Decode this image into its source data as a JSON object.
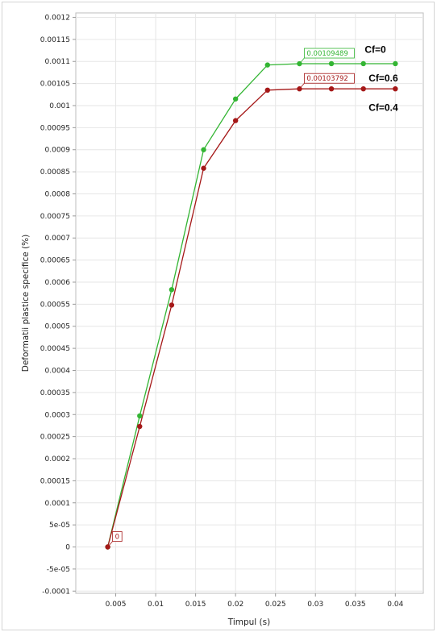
{
  "chart_data": {
    "type": "line",
    "xlabel": "Timpul (s)",
    "ylabel": "Deformatii plastice specifice (%)",
    "xlim": [
      0.0,
      0.0435
    ],
    "ylim": [
      -0.000105,
      0.00121
    ],
    "x_ticks": [
      {
        "value": 0.005,
        "label": "0.005"
      },
      {
        "value": 0.01,
        "label": "0.01"
      },
      {
        "value": 0.015,
        "label": "0.015"
      },
      {
        "value": 0.02,
        "label": "0.02"
      },
      {
        "value": 0.025,
        "label": "0.025"
      },
      {
        "value": 0.03,
        "label": "0.03"
      },
      {
        "value": 0.035,
        "label": "0.035"
      },
      {
        "value": 0.04,
        "label": "0.04"
      }
    ],
    "y_ticks": [
      {
        "value": 0.0012,
        "label": "0.0012"
      },
      {
        "value": 0.00115,
        "label": "0.00115"
      },
      {
        "value": 0.0011,
        "label": "0.0011"
      },
      {
        "value": 0.00105,
        "label": "0.00105"
      },
      {
        "value": 0.001,
        "label": "0.001"
      },
      {
        "value": 0.00095,
        "label": "0.00095"
      },
      {
        "value": 0.0009,
        "label": "0.0009"
      },
      {
        "value": 0.00085,
        "label": "0.00085"
      },
      {
        "value": 0.0008,
        "label": "0.0008"
      },
      {
        "value": 0.00075,
        "label": "0.00075"
      },
      {
        "value": 0.0007,
        "label": "0.0007"
      },
      {
        "value": 0.00065,
        "label": "0.00065"
      },
      {
        "value": 0.0006,
        "label": "0.0006"
      },
      {
        "value": 0.00055,
        "label": "0.00055"
      },
      {
        "value": 0.0005,
        "label": "0.0005"
      },
      {
        "value": 0.00045,
        "label": "0.00045"
      },
      {
        "value": 0.0004,
        "label": "0.0004"
      },
      {
        "value": 0.00035,
        "label": "0.00035"
      },
      {
        "value": 0.0003,
        "label": "0.0003"
      },
      {
        "value": 0.00025,
        "label": "0.00025"
      },
      {
        "value": 0.0002,
        "label": "0.0002"
      },
      {
        "value": 0.00015,
        "label": "0.00015"
      },
      {
        "value": 0.0001,
        "label": "0.0001"
      },
      {
        "value": 5e-05,
        "label": "5e-05"
      },
      {
        "value": 0,
        "label": "0"
      },
      {
        "value": -5e-05,
        "label": "-5e-05"
      },
      {
        "value": -0.0001,
        "label": "-0.0001"
      }
    ],
    "grid": true,
    "series": [
      {
        "name": "Cf=0",
        "color": "#33b533",
        "x": [
          0.004,
          0.008,
          0.012,
          0.016,
          0.02,
          0.024,
          0.028,
          0.032,
          0.036,
          0.04
        ],
        "y": [
          0,
          0.000297,
          0.000583,
          0.0009,
          0.001015,
          0.001092,
          0.00109489,
          0.001095,
          0.001095,
          0.001095
        ]
      },
      {
        "name": "Cf=0.6",
        "color": "#a51818",
        "x": [
          0.004,
          0.008,
          0.012,
          0.016,
          0.02,
          0.024,
          0.028,
          0.032,
          0.036,
          0.04
        ],
        "y": [
          0,
          0.000273,
          0.000548,
          0.000858,
          0.000966,
          0.001035,
          0.00103792,
          0.001038,
          0.001038,
          0.001038
        ]
      }
    ],
    "series_labels": [
      {
        "text": "Cf=0",
        "x": 0.0375,
        "y": 0.00112
      },
      {
        "text": "Cf=0.6",
        "x": 0.0385,
        "y": 0.001055
      },
      {
        "text": "Cf=0.4",
        "x": 0.0385,
        "y": 0.000988
      }
    ],
    "callouts": [
      {
        "text": "0.00109489",
        "x": 0.028,
        "y": 0.00109489,
        "color": "#33b533"
      },
      {
        "text": "0.00103792",
        "x": 0.028,
        "y": 0.00103792,
        "color": "#a51818"
      },
      {
        "text": "0",
        "x": 0.004,
        "y": 0,
        "color": "#a51818"
      }
    ]
  }
}
